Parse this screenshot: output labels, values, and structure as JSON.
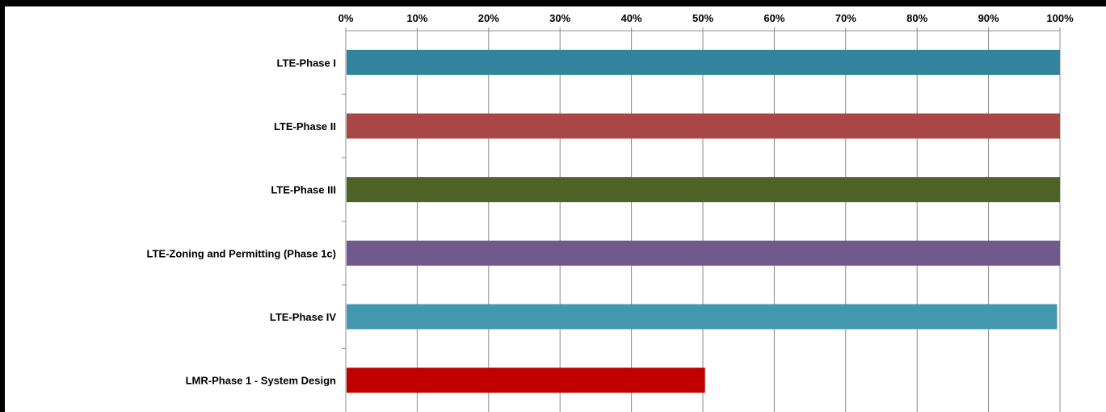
{
  "chart_data": {
    "type": "bar",
    "orientation": "horizontal",
    "categories": [
      "LTE-Phase I",
      "LTE-Phase II",
      "LTE-Phase III",
      "LTE-Zoning and Permitting (Phase 1c)",
      "LTE-Phase IV",
      "LMR-Phase 1 - System Design"
    ],
    "values": [
      100,
      100,
      100,
      100,
      99.6,
      50.3
    ],
    "colors": [
      "#31849B",
      "#A94646",
      "#4F6228",
      "#705A8D",
      "#4298AE",
      "#C00000"
    ],
    "xlim": [
      0,
      100
    ],
    "x_ticks": [
      "0%",
      "10%",
      "20%",
      "30%",
      "40%",
      "50%",
      "60%",
      "70%",
      "80%",
      "90%",
      "100%"
    ],
    "x_axis_position": "top",
    "grid": true,
    "legend": "none"
  }
}
